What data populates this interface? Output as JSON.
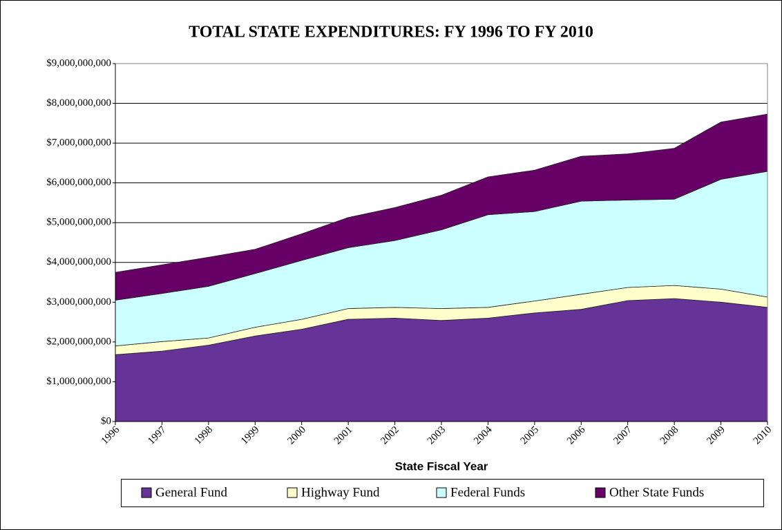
{
  "chart_data": {
    "type": "stacked_area",
    "title": "TOTAL STATE EXPENDITURES: FY 1996 TO FY 2010",
    "x_label": "State Fiscal Year",
    "categories": [
      "1996",
      "1997",
      "1998",
      "1999",
      "2000",
      "2001",
      "2002",
      "2003",
      "2004",
      "2005",
      "2006",
      "2007",
      "2008",
      "2009",
      "2010"
    ],
    "series": [
      {
        "name": "General Fund",
        "color": "#663399",
        "values": [
          1680000000,
          1770000000,
          1920000000,
          2150000000,
          2320000000,
          2570000000,
          2600000000,
          2540000000,
          2600000000,
          2730000000,
          2820000000,
          3040000000,
          3090000000,
          3000000000,
          2870000000
        ]
      },
      {
        "name": "Highway Fund",
        "color": "#ffffcc",
        "values": [
          220000000,
          240000000,
          180000000,
          220000000,
          250000000,
          270000000,
          270000000,
          300000000,
          270000000,
          300000000,
          380000000,
          330000000,
          330000000,
          330000000,
          260000000
        ]
      },
      {
        "name": "Federal Funds",
        "color": "#ccffff",
        "values": [
          1150000000,
          1210000000,
          1300000000,
          1350000000,
          1480000000,
          1530000000,
          1680000000,
          1980000000,
          2330000000,
          2250000000,
          2340000000,
          2200000000,
          2170000000,
          2760000000,
          3160000000
        ]
      },
      {
        "name": "Other State Funds",
        "color": "#660066",
        "values": [
          700000000,
          720000000,
          730000000,
          610000000,
          670000000,
          760000000,
          830000000,
          870000000,
          950000000,
          1040000000,
          1130000000,
          1160000000,
          1280000000,
          1440000000,
          1440000000
        ]
      }
    ],
    "ylim": [
      0,
      9000000000
    ],
    "yticks": [
      {
        "value": 0,
        "label": "$0"
      },
      {
        "value": 1000000000,
        "label": "$1,000,000,000"
      },
      {
        "value": 2000000000,
        "label": "$2,000,000,000"
      },
      {
        "value": 3000000000,
        "label": "$3,000,000,000"
      },
      {
        "value": 4000000000,
        "label": "$4,000,000,000"
      },
      {
        "value": 5000000000,
        "label": "$5,000,000,000"
      },
      {
        "value": 6000000000,
        "label": "$6,000,000,000"
      },
      {
        "value": 7000000000,
        "label": "$7,000,000,000"
      },
      {
        "value": 8000000000,
        "label": "$8,000,000,000"
      },
      {
        "value": 9000000000,
        "label": "$9,000,000,000"
      }
    ],
    "grid": true
  }
}
